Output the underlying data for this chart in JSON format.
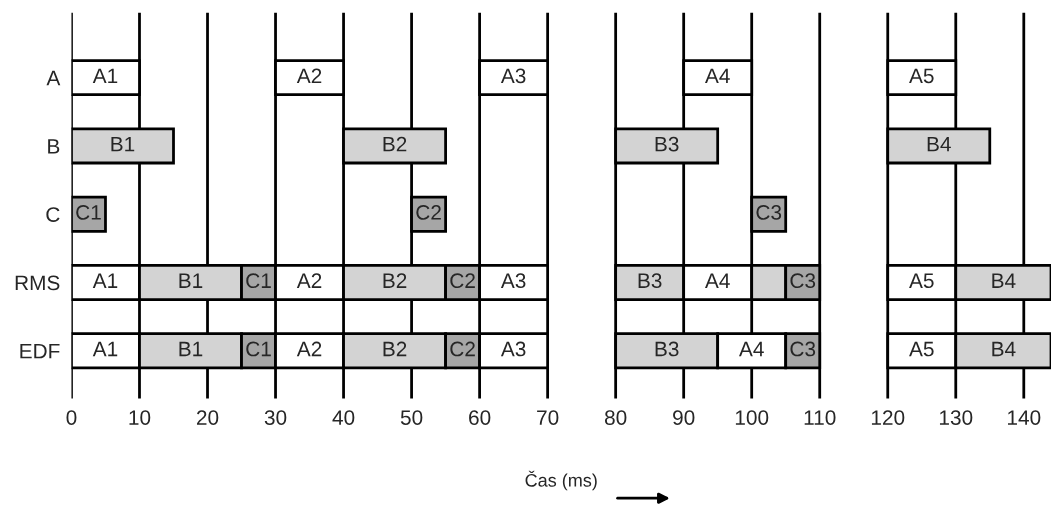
{
  "chart_data": {
    "type": "bar",
    "orientation": "horizontal",
    "xlabel": "Čas (ms)",
    "categories": [
      "A",
      "B",
      "C",
      "RMS",
      "EDF"
    ],
    "series": [
      {
        "base": [
          0,
          0,
          0,
          0,
          0
        ],
        "values": [
          10,
          15,
          5,
          10,
          10
        ],
        "colors": [
          "#ffffff",
          "#d3d3d3",
          "#a6a6a6",
          "#ffffff",
          "#ffffff"
        ],
        "value_labels": [
          "A1",
          "B1",
          "C1",
          "A1",
          "A1"
        ]
      },
      {
        "base": [
          30,
          40,
          50,
          10,
          10
        ],
        "values": [
          10,
          15,
          5,
          15,
          15
        ],
        "colors": [
          "#ffffff",
          "#d3d3d3",
          "#a6a6a6",
          "#d3d3d3",
          "#d3d3d3"
        ],
        "value_labels": [
          "A2",
          "B2",
          "C2",
          "B1",
          "B1"
        ]
      },
      {
        "base": [
          60,
          80,
          100,
          25,
          25
        ],
        "values": [
          10,
          15,
          5,
          5,
          5
        ],
        "colors": [
          "#ffffff",
          "#d3d3d3",
          "#a6a6a6",
          "#a6a6a6",
          "#a6a6a6"
        ],
        "value_labels": [
          "A3",
          "B3",
          "C3",
          "C1",
          "C1"
        ]
      },
      {
        "base": [
          90,
          120,
          null,
          30,
          30
        ],
        "values": [
          10,
          15,
          null,
          10,
          10
        ],
        "colors": [
          "#ffffff",
          "#d3d3d3",
          null,
          "#ffffff",
          "#ffffff"
        ],
        "value_labels": [
          "A4",
          "B4",
          null,
          "A2",
          "A2"
        ]
      },
      {
        "base": [
          120,
          null,
          null,
          40,
          40
        ],
        "values": [
          10,
          null,
          null,
          15,
          15
        ],
        "colors": [
          "#ffffff",
          null,
          null,
          "#d3d3d3",
          "#d3d3d3"
        ],
        "value_labels": [
          "A5",
          null,
          null,
          "B2",
          "B2"
        ]
      },
      {
        "base": [
          null,
          null,
          null,
          55,
          55
        ],
        "values": [
          null,
          null,
          null,
          5,
          5
        ],
        "colors": [
          null,
          null,
          null,
          "#a6a6a6",
          "#a6a6a6"
        ],
        "value_labels": [
          null,
          null,
          null,
          "C2",
          "C2"
        ]
      },
      {
        "base": [
          null,
          null,
          null,
          60,
          60
        ],
        "values": [
          null,
          null,
          null,
          10,
          10
        ],
        "colors": [
          null,
          null,
          null,
          "#ffffff",
          "#ffffff"
        ],
        "value_labels": [
          null,
          null,
          null,
          "A3",
          "A3"
        ]
      },
      {
        "base": [
          null,
          null,
          null,
          80,
          80
        ],
        "values": [
          null,
          null,
          null,
          10,
          15
        ],
        "colors": [
          null,
          null,
          null,
          "#d3d3d3",
          "#d3d3d3"
        ],
        "value_labels": [
          null,
          null,
          null,
          "B3",
          "B3"
        ]
      },
      {
        "base": [
          null,
          null,
          null,
          90,
          95
        ],
        "values": [
          null,
          null,
          null,
          10,
          10
        ],
        "colors": [
          null,
          null,
          null,
          "#ffffff",
          "#ffffff"
        ],
        "value_labels": [
          null,
          null,
          null,
          "A4",
          "A4"
        ]
      },
      {
        "base": [
          null,
          null,
          null,
          100,
          105
        ],
        "values": [
          null,
          null,
          null,
          5,
          5
        ],
        "colors": [
          null,
          null,
          null,
          "#d3d3d3",
          "#a6a6a6"
        ],
        "value_labels": [
          null,
          null,
          null,
          null,
          "C3"
        ]
      },
      {
        "base": [
          null,
          null,
          null,
          105,
          120
        ],
        "values": [
          null,
          null,
          null,
          5,
          10
        ],
        "colors": [
          null,
          null,
          null,
          "#a6a6a6",
          "#ffffff"
        ],
        "value_labels": [
          null,
          null,
          null,
          "C3",
          "A5"
        ]
      },
      {
        "base": [
          null,
          null,
          null,
          120,
          130
        ],
        "values": [
          null,
          null,
          null,
          10,
          14
        ],
        "colors": [
          null,
          null,
          null,
          "#ffffff",
          "#d3d3d3"
        ],
        "value_labels": [
          null,
          null,
          null,
          "A5",
          "B4"
        ]
      },
      {
        "base": [
          null,
          null,
          null,
          130,
          null
        ],
        "values": [
          null,
          null,
          null,
          14,
          null
        ],
        "colors": [
          null,
          null,
          null,
          "#d3d3d3",
          null
        ],
        "value_labels": [
          null,
          null,
          null,
          "B4",
          null
        ]
      }
    ],
    "xlim": [
      0,
      144
    ],
    "xticks": [
      0,
      10,
      20,
      30,
      40,
      50,
      60,
      70,
      80,
      90,
      100,
      110,
      120,
      130,
      140
    ],
    "grid": "x"
  }
}
